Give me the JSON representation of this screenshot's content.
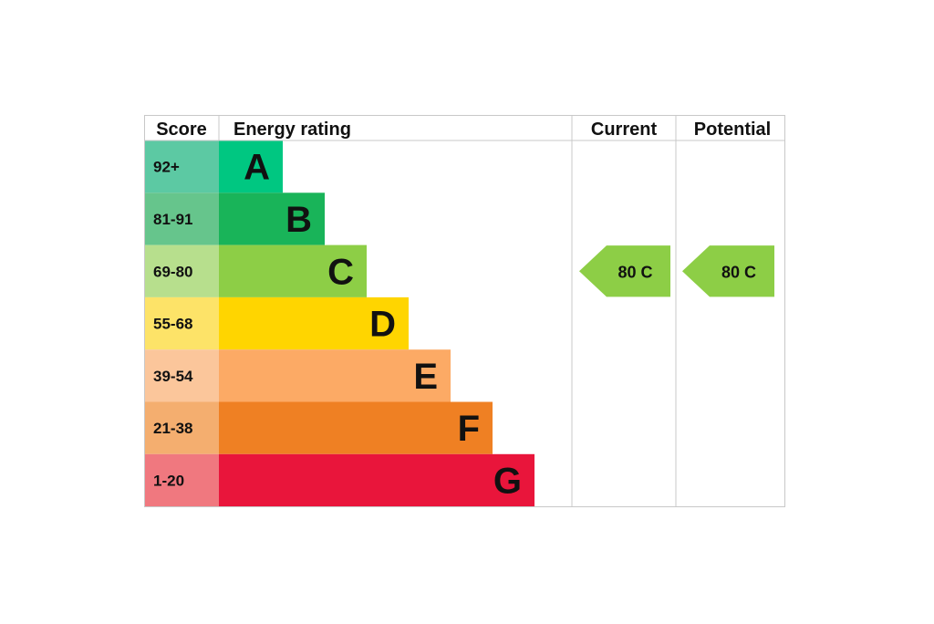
{
  "chart_data": {
    "type": "bar",
    "headers": {
      "score": "Score",
      "rating": "Energy rating",
      "current": "Current",
      "potential": "Potential"
    },
    "bands": [
      {
        "band": "A",
        "score": "92+",
        "color": "#00c781",
        "score_color": "#5cc9a3"
      },
      {
        "band": "B",
        "score": "81-91",
        "color": "#19b459",
        "score_color": "#66c58c"
      },
      {
        "band": "C",
        "score": "69-80",
        "color": "#8dce46",
        "score_color": "#b7df8d"
      },
      {
        "band": "D",
        "score": "55-68",
        "color": "#ffd500",
        "score_color": "#fde368"
      },
      {
        "band": "E",
        "score": "39-54",
        "color": "#fcaa65",
        "score_color": "#fbc69b"
      },
      {
        "band": "F",
        "score": "21-38",
        "color": "#ef8023",
        "score_color": "#f4ae6f"
      },
      {
        "band": "G",
        "score": "1-20",
        "color": "#e9153b",
        "score_color": "#f0787f"
      }
    ],
    "current": {
      "label": "80 C",
      "value": 80,
      "band": "C",
      "color": "#8dce46"
    },
    "potential": {
      "label": "80 C",
      "value": 80,
      "band": "C",
      "color": "#8dce46"
    }
  }
}
